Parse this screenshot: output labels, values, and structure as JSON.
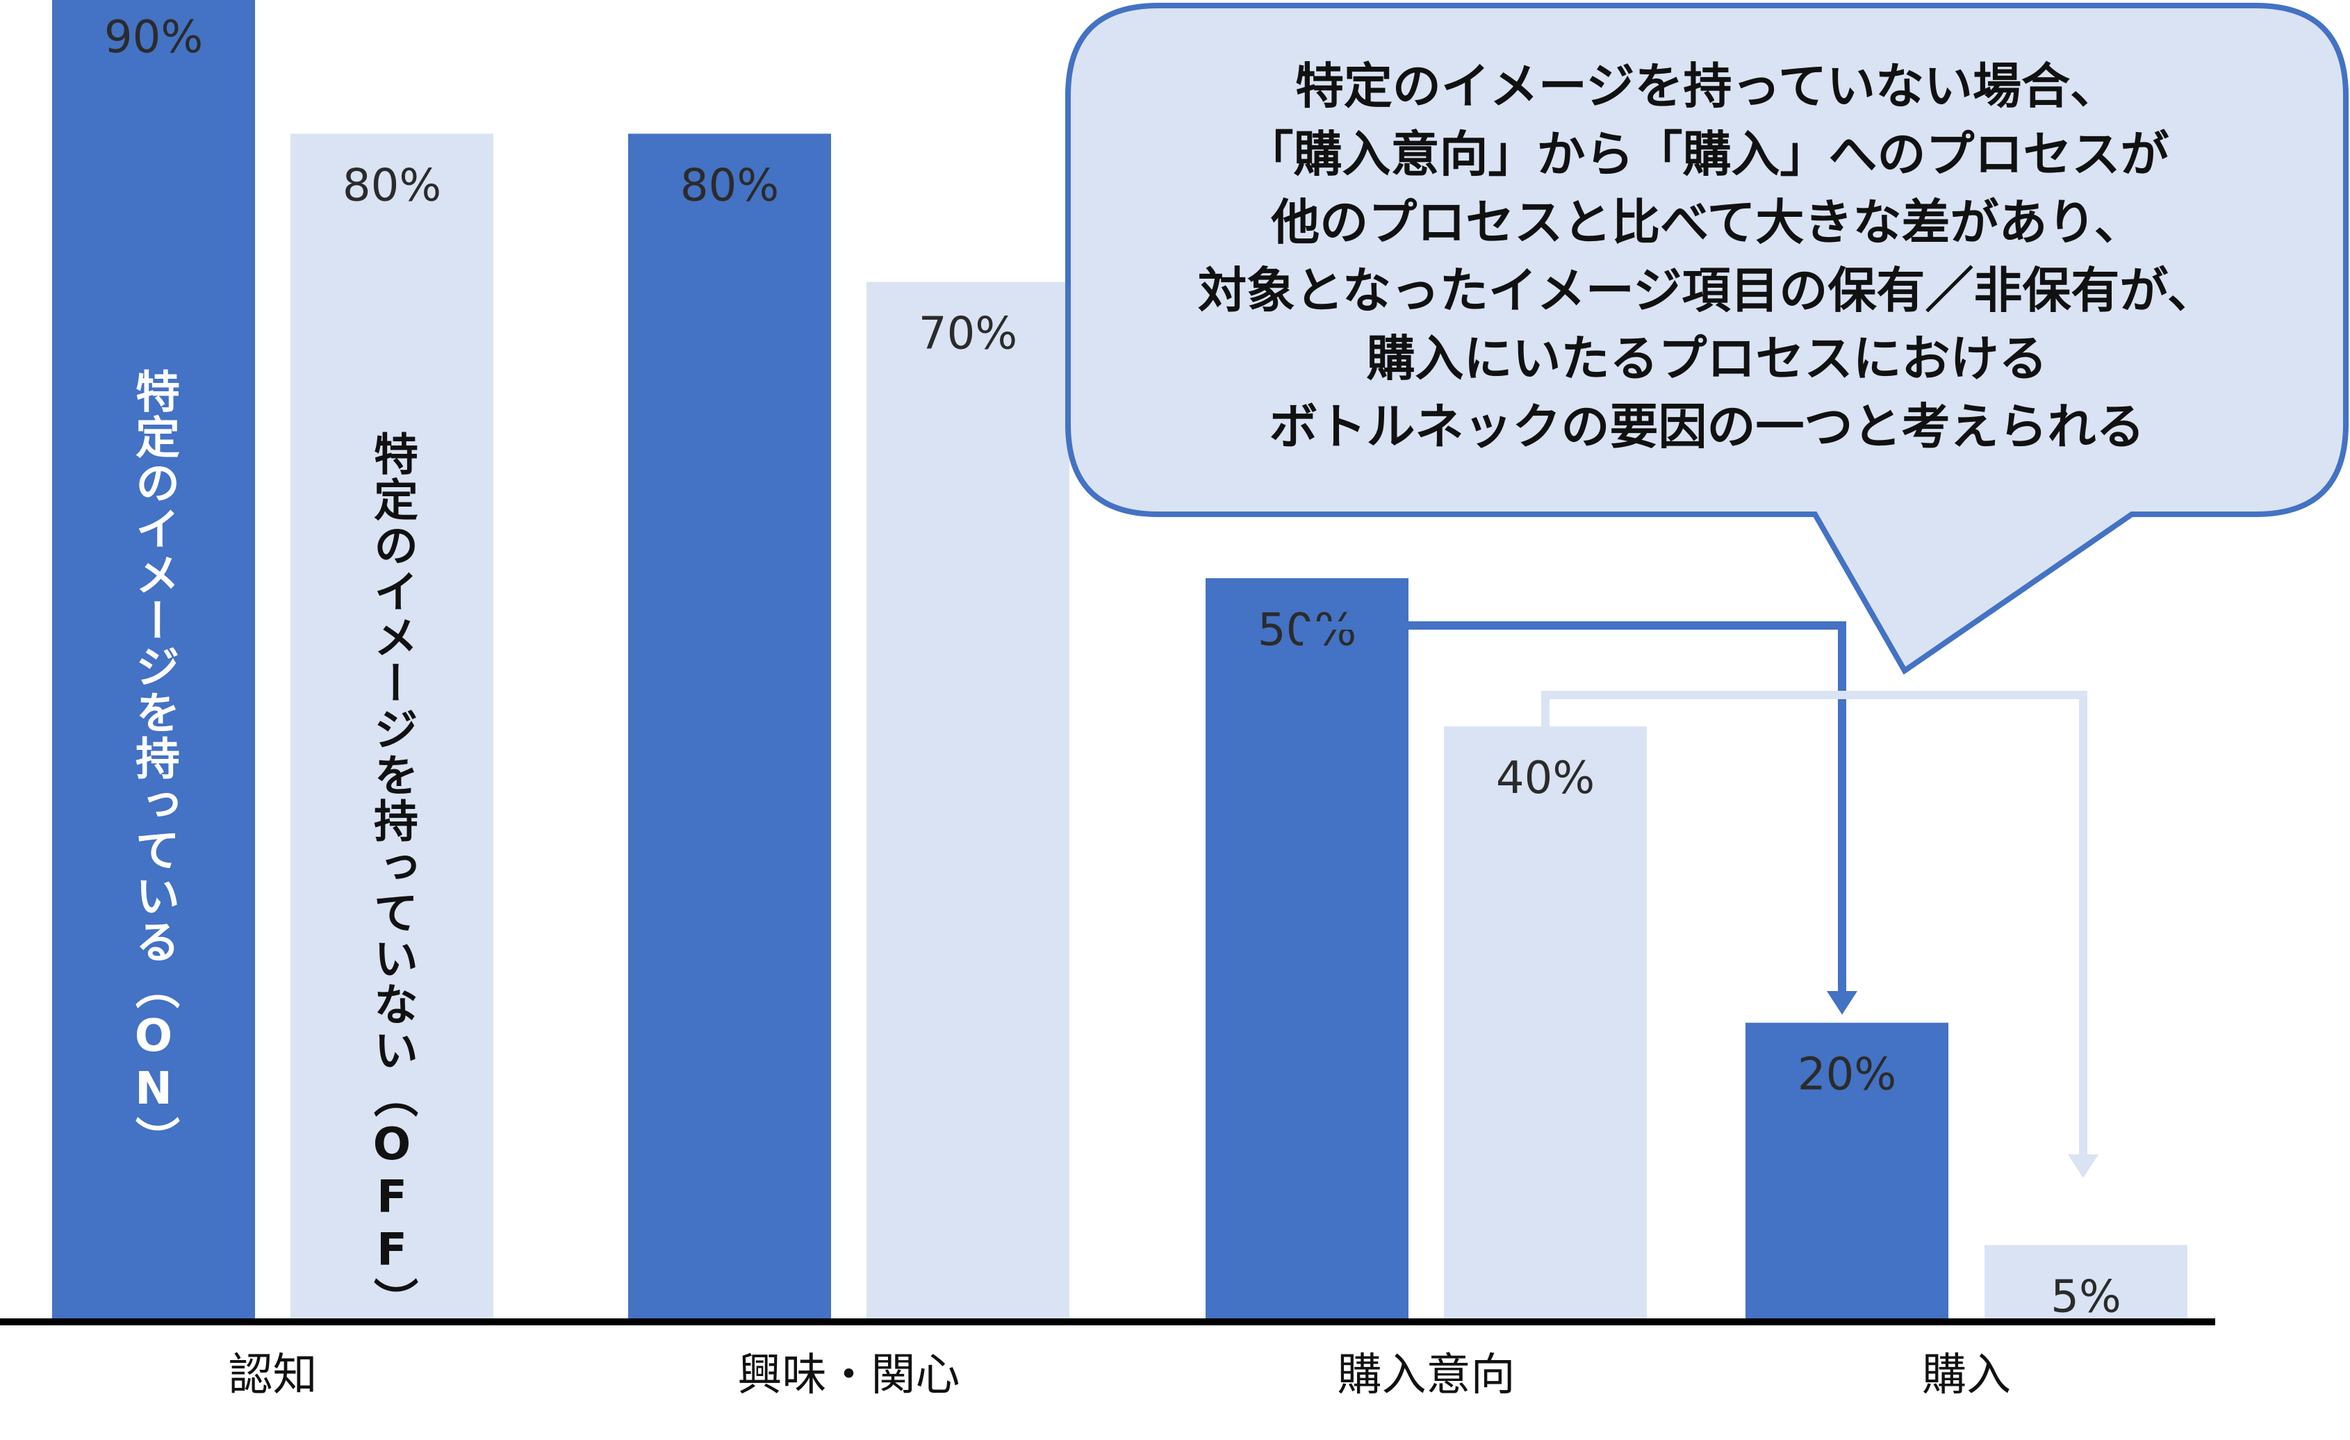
{
  "chart_data": {
    "type": "bar",
    "categories": [
      "認知",
      "興味・関心",
      "購入意向",
      "購入"
    ],
    "series": [
      {
        "name": "特定のイメージを持っている（ON）",
        "values": [
          90,
          80,
          50,
          20
        ],
        "color": "#4472C4",
        "label_color": "#ffffff"
      },
      {
        "name": "特定のイメージを持っていない（OFF）",
        "values": [
          80,
          70,
          40,
          5
        ],
        "color": "#DAE3F3",
        "label_color": "#111111"
      }
    ],
    "value_suffix": "%",
    "ylim": [
      0,
      100
    ],
    "grid": false,
    "legend": "inside-first-bars",
    "annotation": {
      "lines": [
        "特定のイメージを持っていない場合、",
        "「購入意向」から「購入」へのプロセスが",
        "他のプロセスと比べて大きな差があり、",
        "対象となったイメージ項目の保有／非保有が、",
        "購入にいたるプロセスにおける",
        "ボトルネックの要因の一つと考えられる"
      ],
      "fill": "#DAE3F3",
      "stroke": "#4472C4"
    },
    "arrows": [
      {
        "series": 0,
        "from": "購入意向",
        "to": "購入",
        "color": "#4472C4"
      },
      {
        "series": 1,
        "from": "購入意向",
        "to": "購入",
        "color": "#DAE3F3"
      }
    ]
  }
}
